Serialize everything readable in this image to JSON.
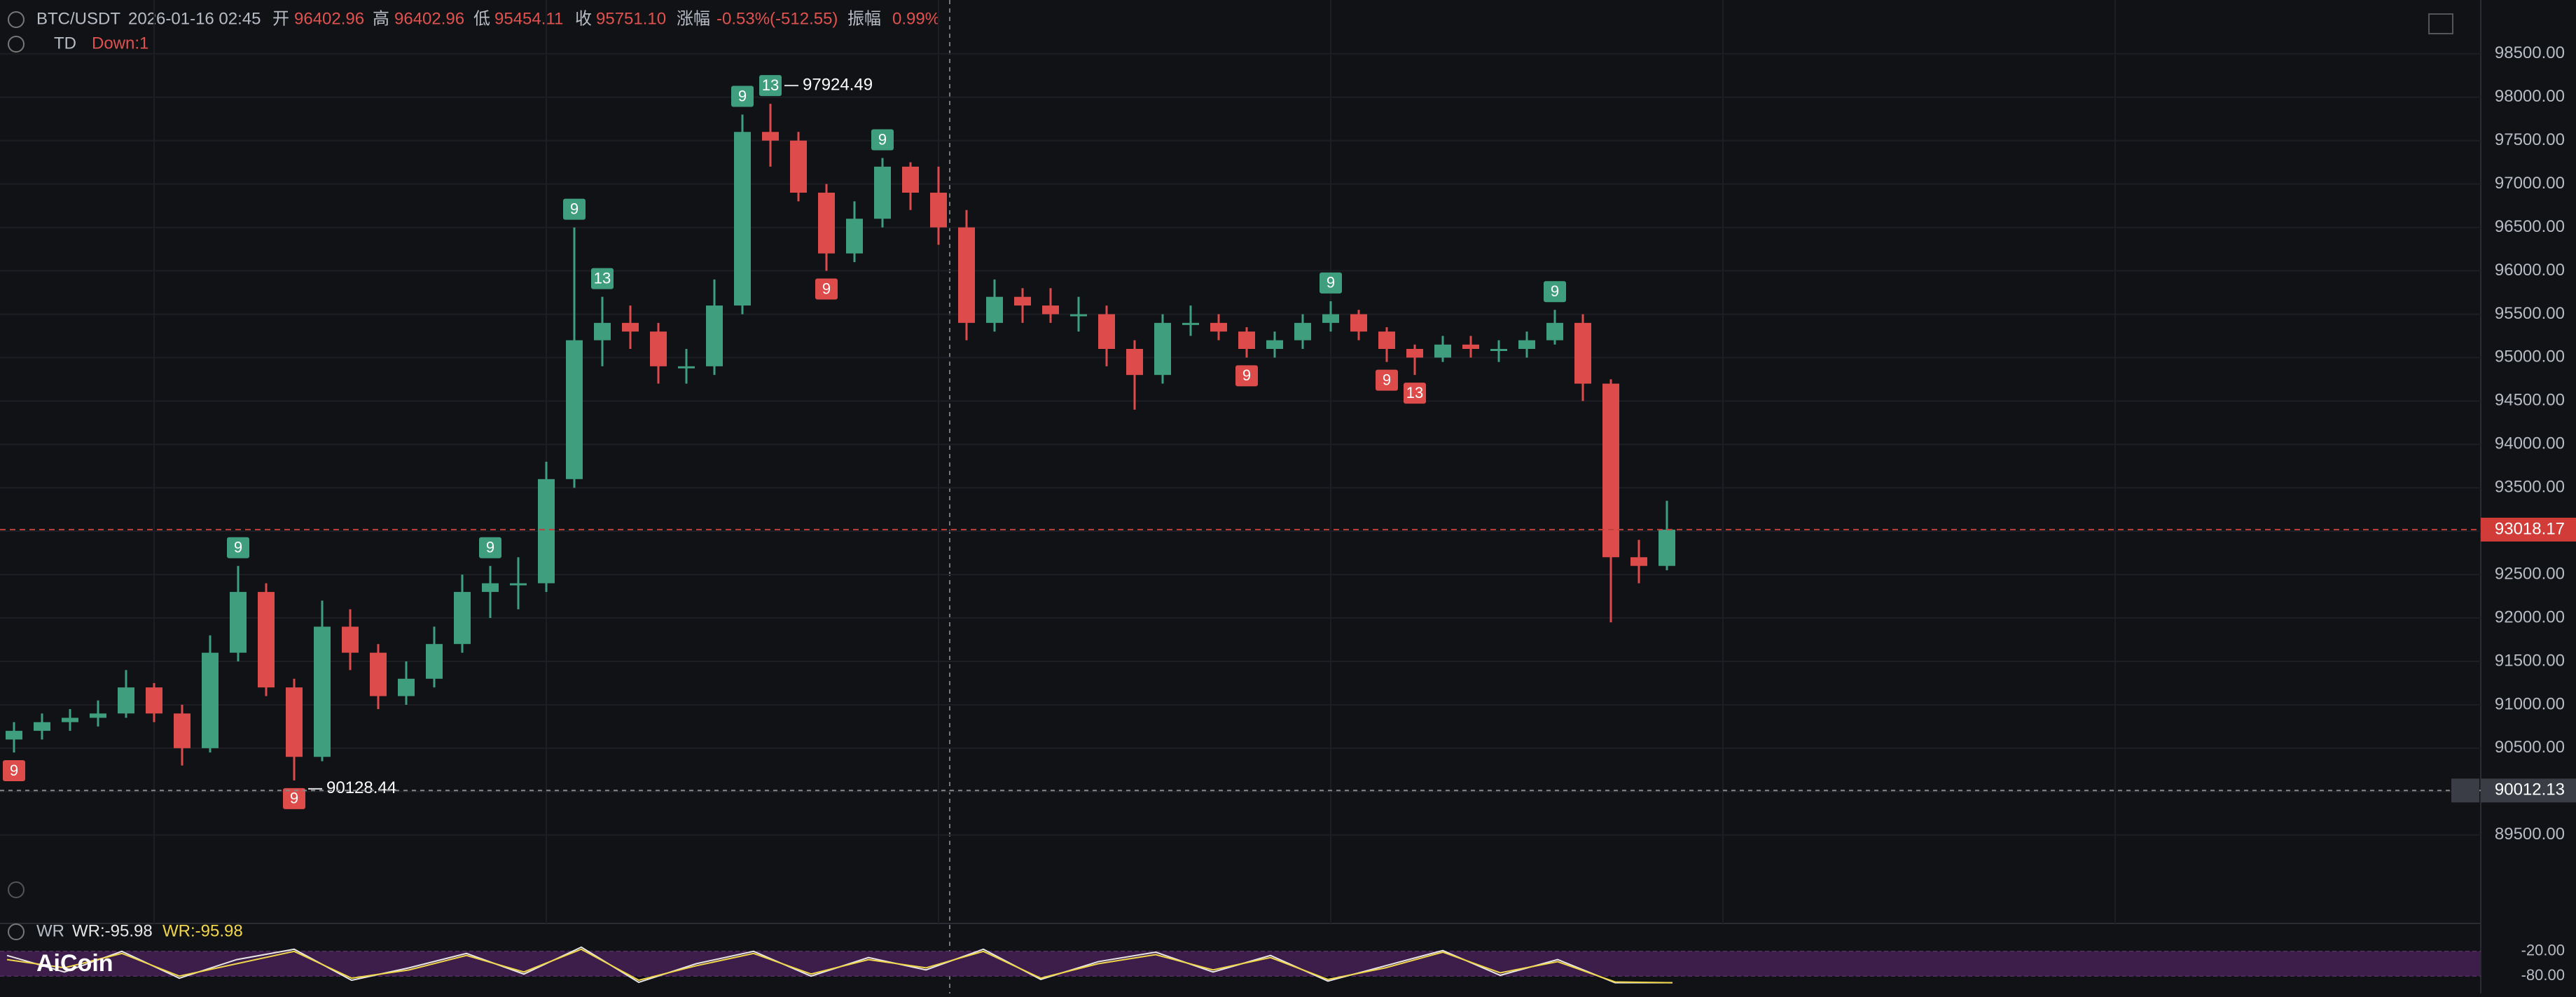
{
  "header": {
    "symbol": "BTC/USDT",
    "time": "2026-01-16 02:45",
    "open_label": "开",
    "open": "96402.96",
    "high_label": "高",
    "high": "96402.96",
    "low_label": "低",
    "low": "95454.11",
    "close_label": "收",
    "close": "95751.10",
    "change_label": "涨幅",
    "change": "-0.53%(-512.55)",
    "amplitude_label": "振幅",
    "amplitude": "0.99%",
    "indicator": "TD",
    "indicator_value": "Down:1",
    "logo": "AiCoin"
  },
  "chart_data": {
    "type": "candlestick",
    "ylim": [
      88610,
      99120
    ],
    "yticks": [
      {
        "value": 89500,
        "label": "89500.00"
      },
      {
        "value": 90000,
        "label": "90000.00"
      },
      {
        "value": 90500,
        "label": "90500.00"
      },
      {
        "value": 91000,
        "label": "91000.00"
      },
      {
        "value": 91500,
        "label": "91500.00"
      },
      {
        "value": 92000,
        "label": "92000.00"
      },
      {
        "value": 92500,
        "label": "92500.00"
      },
      {
        "value": 93000,
        "label": "93000.00"
      },
      {
        "value": 93500,
        "label": "93500.00"
      },
      {
        "value": 94000,
        "label": "94000.00"
      },
      {
        "value": 94500,
        "label": "94500.00"
      },
      {
        "value": 95000,
        "label": "95000.00"
      },
      {
        "value": 95500,
        "label": "95500.00"
      },
      {
        "value": 96000,
        "label": "96000.00"
      },
      {
        "value": 96500,
        "label": "96500.00"
      },
      {
        "value": 97000,
        "label": "97000.00"
      },
      {
        "value": 97500,
        "label": "97500.00"
      },
      {
        "value": 98000,
        "label": "98000.00"
      },
      {
        "value": 98500,
        "label": "98500.00"
      }
    ],
    "up_color": "#3f9e7d",
    "down_color": "#dd4b4b",
    "candles": [
      [
        90600,
        90800,
        90450,
        90700
      ],
      [
        90700,
        90900,
        90600,
        90800
      ],
      [
        90800,
        90950,
        90700,
        90850
      ],
      [
        90850,
        91050,
        90750,
        90900
      ],
      [
        90900,
        91400,
        90850,
        91200
      ],
      [
        91200,
        91250,
        90800,
        90900
      ],
      [
        90900,
        91000,
        90300,
        90500
      ],
      [
        90500,
        91800,
        90450,
        91600
      ],
      [
        91600,
        92600,
        91500,
        92300
      ],
      [
        92300,
        92400,
        91100,
        91200
      ],
      [
        91200,
        91300,
        90128.44,
        90400
      ],
      [
        90400,
        92200,
        90350,
        91900
      ],
      [
        91900,
        92100,
        91400,
        91600
      ],
      [
        91600,
        91700,
        90950,
        91100
      ],
      [
        91100,
        91500,
        91000,
        91300
      ],
      [
        91300,
        91900,
        91200,
        91700
      ],
      [
        91700,
        92500,
        91600,
        92300
      ],
      [
        92300,
        92600,
        92000,
        92400
      ],
      [
        92400,
        92700,
        92100,
        92400
      ],
      [
        92400,
        93800,
        92300,
        93600
      ],
      [
        93600,
        96500,
        93500,
        95200
      ],
      [
        95200,
        95700,
        94900,
        95400
      ],
      [
        95400,
        95600,
        95100,
        95300
      ],
      [
        95300,
        95400,
        94700,
        94900
      ],
      [
        94900,
        95100,
        94700,
        94900
      ],
      [
        94900,
        95900,
        94800,
        95600
      ],
      [
        95600,
        97800,
        95500,
        97600
      ],
      [
        97600,
        97924.49,
        97200,
        97500
      ],
      [
        97500,
        97600,
        96800,
        96900
      ],
      [
        96900,
        97000,
        96000,
        96200
      ],
      [
        96200,
        96800,
        96100,
        96600
      ],
      [
        96600,
        97300,
        96500,
        97200
      ],
      [
        97200,
        97250,
        96700,
        96900
      ],
      [
        96900,
        97200,
        96300,
        96500
      ],
      [
        96500,
        96700,
        95200,
        95400
      ],
      [
        95400,
        95900,
        95300,
        95700
      ],
      [
        95700,
        95800,
        95400,
        95600
      ],
      [
        95600,
        95800,
        95400,
        95500
      ],
      [
        95500,
        95700,
        95300,
        95500
      ],
      [
        95500,
        95600,
        94900,
        95100
      ],
      [
        95100,
        95200,
        94400,
        94800
      ],
      [
        94800,
        95500,
        94700,
        95400
      ],
      [
        95400,
        95600,
        95250,
        95400
      ],
      [
        95400,
        95500,
        95200,
        95300
      ],
      [
        95300,
        95350,
        95000,
        95100
      ],
      [
        95100,
        95300,
        95000,
        95200
      ],
      [
        95200,
        95500,
        95100,
        95400
      ],
      [
        95400,
        95650,
        95300,
        95500
      ],
      [
        95500,
        95550,
        95200,
        95300
      ],
      [
        95300,
        95350,
        94950,
        95100
      ],
      [
        95100,
        95150,
        94800,
        95000
      ],
      [
        95000,
        95250,
        94950,
        95150
      ],
      [
        95150,
        95250,
        95000,
        95100
      ],
      [
        95100,
        95200,
        94950,
        95100
      ],
      [
        95100,
        95300,
        95000,
        95200
      ],
      [
        95200,
        95550,
        95150,
        95400
      ],
      [
        95400,
        95500,
        94500,
        94700
      ],
      [
        94700,
        94750,
        91950,
        92700
      ],
      [
        92700,
        92900,
        92400,
        92600
      ],
      [
        92600,
        93350,
        92550,
        93018.17
      ]
    ],
    "td_labels": [
      "9",
      "9",
      "9",
      "9",
      "9",
      "13",
      "9",
      "13",
      "9",
      "9",
      "9",
      "9",
      "9",
      "13",
      "9"
    ],
    "crosshair_price": 90012.13,
    "wr": {
      "title": "WR",
      "ylim": [
        -100,
        0
      ],
      "yticks": [
        {
          "value": -20,
          "label": "-20.00"
        },
        {
          "value": -80,
          "label": "-80.00"
        }
      ],
      "series": [
        {
          "name": "WR:-95.98",
          "color": "#e6e6e6",
          "values": [
            -30,
            -70,
            -20,
            -85,
            -40,
            -15,
            -90,
            -60,
            -25,
            -75,
            -10,
            -95,
            -50,
            -20,
            -80,
            -35,
            -65,
            -15,
            -88,
            -45,
            -22,
            -70,
            -30,
            -92,
            -55,
            -18,
            -78,
            -40,
            -96,
            -95.98
          ]
        },
        {
          "name": "WR:-95.98",
          "color": "#f0d64a",
          "values": [
            -40,
            -60,
            -25,
            -80,
            -50,
            -20,
            -85,
            -65,
            -30,
            -70,
            -15,
            -90,
            -55,
            -25,
            -75,
            -40,
            -60,
            -20,
            -85,
            -50,
            -28,
            -65,
            -35,
            -88,
            -60,
            -22,
            -72,
            -45,
            -94,
            -95.98
          ]
        }
      ]
    }
  }
}
